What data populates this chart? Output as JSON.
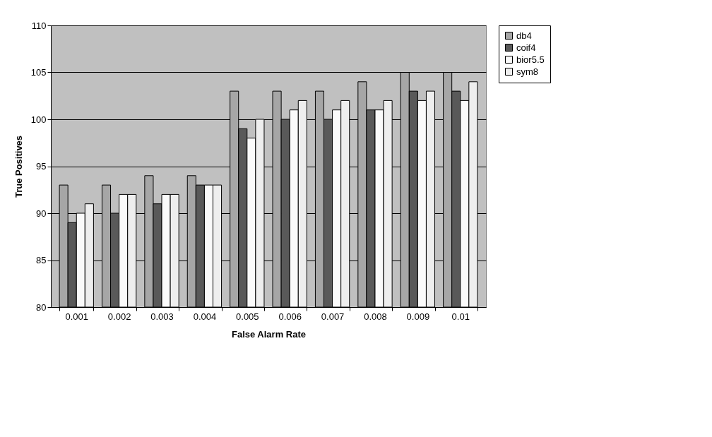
{
  "chart_data": {
    "type": "bar",
    "xlabel": "False Alarm Rate",
    "ylabel": "True Positives",
    "categories": [
      "0.001",
      "0.002",
      "0.003",
      "0.004",
      "0.005",
      "0.006",
      "0.007",
      "0.008",
      "0.009",
      "0.01"
    ],
    "series": [
      {
        "name": "db4",
        "color": "#a6a6a6",
        "values": [
          93,
          93,
          94,
          94,
          103,
          103,
          103,
          104,
          105,
          105
        ]
      },
      {
        "name": "coif4",
        "color": "#595959",
        "values": [
          89,
          90,
          91,
          93,
          99,
          100,
          100,
          101,
          103,
          103
        ]
      },
      {
        "name": "bior5.5",
        "color": "#fafafa",
        "values": [
          90,
          92,
          92,
          93,
          98,
          101,
          101,
          101,
          102,
          102
        ]
      },
      {
        "name": "sym8",
        "color": "#eeeeee",
        "values": [
          91,
          92,
          92,
          93,
          100,
          102,
          102,
          102,
          103,
          104
        ]
      }
    ],
    "ylim": [
      80,
      110
    ],
    "yticks": [
      80,
      85,
      90,
      95,
      100,
      105,
      110
    ],
    "grid": "y",
    "legend": "right"
  }
}
